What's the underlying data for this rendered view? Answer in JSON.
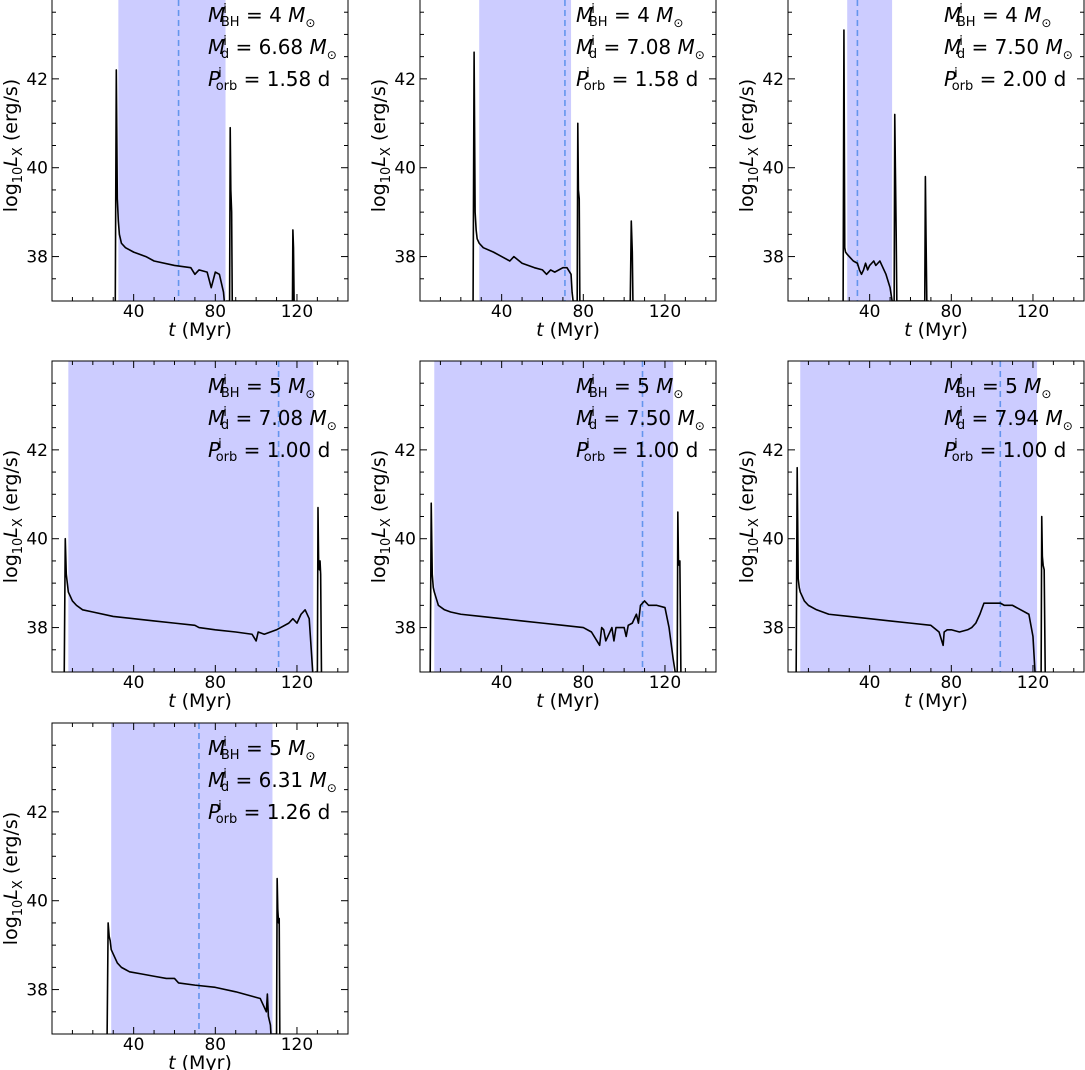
{
  "figure": {
    "xlabel_var": "t",
    "xlabel_unit": " (Myr)",
    "ylabel_prefix": "log",
    "ylabel_sub": "10",
    "ylabel_var": "L",
    "ylabel_var_sub": "X",
    "ylabel_unit": " (erg/s)",
    "x_ticks": [
      40,
      80,
      120
    ],
    "y_ticks": [
      38,
      40,
      42
    ],
    "annotation_symbols": {
      "mbh": "M",
      "mbh_sup": "i",
      "mbh_sub": "BH",
      "md": "M",
      "md_sup": "i",
      "md_sub": "d",
      "porb": "P",
      "porb_sup": "i",
      "porb_sub": "orb",
      "msun": "M",
      "msun_sub": "⊙",
      "day": "d"
    },
    "colors": {
      "shade": "#ccccff",
      "dashed": "#6495ed",
      "line": "#000000"
    }
  },
  "chart_data": [
    {
      "type": "line",
      "m_bh": "4",
      "m_d": "6.68",
      "p_orb": "1.58",
      "xlim": [
        0,
        145
      ],
      "ylim": [
        37,
        44
      ],
      "shade": [
        32.5,
        85
      ],
      "dashed_x": 62,
      "x": [
        31,
        31.5,
        32,
        32.5,
        33,
        34,
        36,
        40,
        46,
        50,
        60,
        68,
        70,
        72,
        76,
        78,
        80,
        82,
        84,
        85,
        85.3,
        85.6,
        86,
        86.5,
        87,
        87.3,
        87.6,
        88,
        88.3,
        88.6,
        89,
        117,
        117.8,
        118,
        118.3,
        118.6,
        119
      ],
      "y": [
        37,
        42.2,
        39.3,
        38.8,
        38.5,
        38.3,
        38.2,
        38.1,
        38.0,
        37.9,
        37.8,
        37.75,
        37.6,
        37.7,
        37.65,
        37.3,
        37.65,
        37.6,
        37.2,
        36.5,
        37,
        37,
        37,
        37,
        37,
        40.9,
        39.5,
        39.0,
        37,
        37,
        37,
        37,
        37,
        38.6,
        38.2,
        37,
        37
      ]
    },
    {
      "type": "line",
      "m_bh": "4",
      "m_d": "7.08",
      "p_orb": "1.58",
      "xlim": [
        0,
        145
      ],
      "ylim": [
        37,
        44
      ],
      "shade": [
        29,
        74
      ],
      "dashed_x": 71,
      "x": [
        26,
        26.5,
        27,
        27.5,
        28,
        29,
        31,
        36,
        40,
        44,
        46,
        50,
        56,
        60,
        62,
        64,
        66,
        70,
        72,
        74,
        74.5,
        75,
        76,
        76.5,
        77,
        77.3,
        77.6,
        78,
        78.3,
        78.6,
        79,
        103,
        103.5,
        104,
        104.3,
        104.6,
        105
      ],
      "y": [
        37,
        42.6,
        39.0,
        38.6,
        38.4,
        38.3,
        38.2,
        38.1,
        38.0,
        37.9,
        38.0,
        37.85,
        37.75,
        37.7,
        37.6,
        37.7,
        37.65,
        37.75,
        37.75,
        37.6,
        37.2,
        37,
        37,
        37,
        37,
        41.0,
        39.5,
        39.3,
        37,
        37,
        37,
        37,
        38.8,
        38.1,
        37,
        37,
        37
      ]
    },
    {
      "type": "line",
      "m_bh": "4",
      "m_d": "7.50",
      "p_orb": "2.00",
      "xlim": [
        0,
        145
      ],
      "ylim": [
        37,
        44
      ],
      "shade": [
        29,
        51
      ],
      "dashed_x": 34,
      "x": [
        27,
        27.4,
        27.8,
        28.2,
        29,
        30,
        32,
        34,
        35,
        36,
        37,
        38,
        39,
        40,
        41,
        42,
        43,
        44,
        45,
        46,
        48,
        50,
        51,
        51.5,
        52,
        52.3,
        52.6,
        53,
        53.3,
        53.6,
        54,
        67,
        67.3,
        67.6,
        68,
        68.3,
        69
      ],
      "y": [
        37,
        43.1,
        38.2,
        38.1,
        38.05,
        38.0,
        37.9,
        37.85,
        37.7,
        37.6,
        37.7,
        37.85,
        37.7,
        37.8,
        37.85,
        37.9,
        37.8,
        37.85,
        37.9,
        37.8,
        37.6,
        37.3,
        37,
        37,
        37,
        41.2,
        40.0,
        38.5,
        37,
        37,
        37,
        37,
        39.8,
        38.5,
        37,
        37,
        37
      ]
    },
    {
      "type": "line",
      "m_bh": "5",
      "m_d": "7.08",
      "p_orb": "1.00",
      "xlim": [
        0,
        145
      ],
      "ylim": [
        37,
        44
      ],
      "shade": [
        8,
        128
      ],
      "dashed_x": 111,
      "x": [
        6,
        6.5,
        7,
        7.5,
        8,
        9,
        10,
        12,
        15,
        20,
        30,
        40,
        50,
        60,
        70,
        72,
        80,
        90,
        98,
        100,
        101,
        104,
        110,
        112,
        116,
        118,
        120,
        122,
        124,
        126,
        127,
        128,
        129,
        129.5,
        130,
        130.3,
        130.6,
        131,
        131.3,
        131.6,
        132,
        132.3
      ],
      "y": [
        37,
        40.0,
        39.2,
        39.0,
        38.8,
        38.7,
        38.6,
        38.5,
        38.4,
        38.35,
        38.25,
        38.2,
        38.15,
        38.1,
        38.05,
        38.0,
        37.95,
        37.9,
        37.85,
        37.7,
        37.9,
        37.85,
        37.95,
        38.0,
        38.1,
        38.2,
        38.1,
        38.3,
        38.4,
        38.2,
        37.5,
        36.8,
        37,
        37,
        37,
        40.7,
        39.5,
        39.3,
        39.5,
        39.2,
        37,
        37
      ]
    },
    {
      "type": "line",
      "m_bh": "5",
      "m_d": "7.50",
      "p_orb": "1.00",
      "xlim": [
        0,
        145
      ],
      "ylim": [
        37,
        44
      ],
      "shade": [
        7,
        124
      ],
      "dashed_x": 109,
      "x": [
        5,
        5.5,
        6,
        6.5,
        7,
        8,
        9,
        12,
        15,
        20,
        30,
        40,
        50,
        60,
        70,
        80,
        84,
        88,
        89,
        90,
        91,
        94,
        95,
        96,
        100,
        101,
        102,
        104,
        106,
        107,
        108,
        110,
        112,
        116,
        120,
        122,
        124,
        125,
        126,
        126.3,
        126.6,
        127,
        127.3,
        127.8
      ],
      "y": [
        37,
        40.8,
        39.2,
        38.9,
        38.8,
        38.65,
        38.5,
        38.4,
        38.35,
        38.3,
        38.25,
        38.2,
        38.15,
        38.1,
        38.05,
        38.0,
        37.9,
        37.6,
        38.0,
        37.95,
        37.7,
        38.0,
        37.7,
        38.0,
        38.0,
        37.8,
        38.05,
        38.1,
        38.3,
        38.1,
        38.5,
        38.6,
        38.5,
        38.5,
        38.45,
        38.0,
        37.3,
        37,
        37,
        40.6,
        39.5,
        39.4,
        39.5,
        37
      ]
    },
    {
      "type": "line",
      "m_bh": "5",
      "m_d": "7.94",
      "p_orb": "1.00",
      "xlim": [
        0,
        145
      ],
      "ylim": [
        37,
        44
      ],
      "shade": [
        6,
        122
      ],
      "dashed_x": 104,
      "x": [
        4,
        4.5,
        5,
        5.5,
        6,
        7,
        8,
        10,
        14,
        20,
        30,
        40,
        50,
        60,
        70,
        74,
        76,
        76.5,
        78,
        80,
        84,
        88,
        90,
        92,
        94,
        96,
        100,
        104,
        106,
        110,
        114,
        118,
        120,
        121,
        122,
        123,
        124,
        124.3,
        124.6,
        125,
        125.5,
        126,
        126.3
      ],
      "y": [
        37,
        41.6,
        39.1,
        38.9,
        38.8,
        38.7,
        38.6,
        38.5,
        38.4,
        38.3,
        38.25,
        38.2,
        38.15,
        38.1,
        38.05,
        37.9,
        37.6,
        37.9,
        37.95,
        37.95,
        37.9,
        37.95,
        38.0,
        38.1,
        38.3,
        38.55,
        38.55,
        38.55,
        38.5,
        38.5,
        38.4,
        38.3,
        37.8,
        37,
        37,
        37,
        37,
        40.5,
        39.6,
        39.4,
        39.3,
        37,
        37
      ]
    },
    {
      "type": "line",
      "m_bh": "5",
      "m_d": "6.31",
      "p_orb": "1.26",
      "xlim": [
        0,
        145
      ],
      "ylim": [
        37,
        44
      ],
      "shade": [
        29,
        108
      ],
      "dashed_x": 72,
      "x": [
        27,
        27.5,
        28,
        28.5,
        29,
        30,
        32,
        34,
        38,
        44,
        50,
        56,
        60,
        62,
        70,
        80,
        90,
        98,
        102,
        104,
        105,
        105.5,
        106,
        107,
        107.5,
        108,
        108.5,
        109,
        110,
        110.3,
        110.6,
        111,
        111.3,
        111.6,
        112
      ],
      "y": [
        37,
        39.5,
        39.2,
        39.1,
        38.9,
        38.8,
        38.6,
        38.5,
        38.4,
        38.35,
        38.3,
        38.25,
        38.25,
        38.15,
        38.1,
        38.05,
        37.95,
        37.85,
        37.8,
        37.6,
        37.5,
        37.9,
        37.4,
        37.2,
        36.8,
        37,
        37,
        37,
        37,
        40.5,
        39.8,
        39.5,
        39.6,
        37,
        37
      ]
    }
  ]
}
